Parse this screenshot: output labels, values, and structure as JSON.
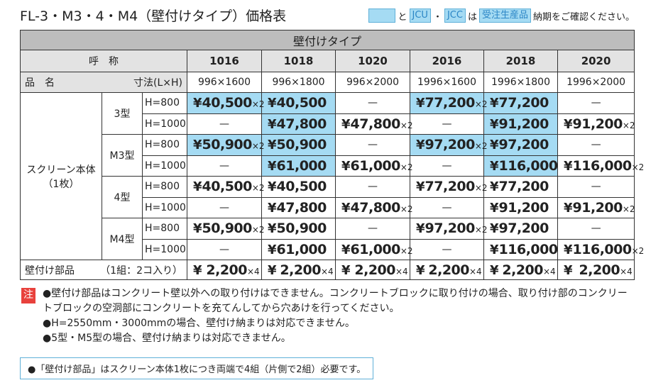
{
  "title": "FL-3・M3・4・M4（壁付けタイプ）価格表",
  "legend": {
    "and": "と",
    "jcu": "JCU",
    "dot": "・",
    "jcc": "JCC",
    "topic": "は",
    "order": "受注生産品",
    "check": "納期をご確認ください。"
  },
  "table": {
    "group": "壁付けタイプ",
    "name_header": "呼　称",
    "item_header": "品　名",
    "size_header": "寸法(L×H)",
    "currency": "¥",
    "codes": [
      "1016",
      "1018",
      "1020",
      "2016",
      "2018",
      "2020"
    ],
    "sizes": [
      "996×1600",
      "996×1800",
      "996×2000",
      "1996×1600",
      "1996×1800",
      "1996×2000"
    ],
    "product": [
      "スクリーン本体",
      "（1枚）"
    ],
    "models": [
      {
        "name": "3型",
        "rows": [
          {
            "height": "H=800",
            "cells": [
              {
                "price": "40,500",
                "mult": "×2",
                "highlight": true
              },
              {
                "price": "40,500",
                "highlight": true
              },
              {
                "price": "—"
              },
              {
                "price": "77,200",
                "mult": "×2",
                "highlight": true
              },
              {
                "price": "77,200",
                "highlight": true
              },
              {
                "price": "—"
              }
            ]
          },
          {
            "height": "H=1000",
            "cells": [
              {
                "price": "—"
              },
              {
                "price": "47,800",
                "highlight": true
              },
              {
                "price": "47,800",
                "mult": "×2"
              },
              {
                "price": "—"
              },
              {
                "price": "91,200",
                "highlight": true
              },
              {
                "price": "91,200",
                "mult": "×2"
              }
            ]
          }
        ]
      },
      {
        "name": "M3型",
        "rows": [
          {
            "height": "H=800",
            "cells": [
              {
                "price": "50,900",
                "mult": "×2",
                "highlight": true
              },
              {
                "price": "50,900",
                "highlight": true
              },
              {
                "price": "—"
              },
              {
                "price": "97,200",
                "mult": "×2",
                "highlight": true
              },
              {
                "price": "97,200",
                "highlight": true
              },
              {
                "price": "—"
              }
            ]
          },
          {
            "height": "H=1000",
            "cells": [
              {
                "price": "—"
              },
              {
                "price": "61,000",
                "highlight": true
              },
              {
                "price": "61,000",
                "mult": "×2"
              },
              {
                "price": "—"
              },
              {
                "price": "116,000",
                "highlight": true
              },
              {
                "price": "116,000",
                "mult": "×2"
              }
            ]
          }
        ]
      },
      {
        "name": "4型",
        "rows": [
          {
            "height": "H=800",
            "cells": [
              {
                "price": "40,500",
                "mult": "×2"
              },
              {
                "price": "40,500"
              },
              {
                "price": "—"
              },
              {
                "price": "77,200",
                "mult": "×2"
              },
              {
                "price": "77,200"
              },
              {
                "price": "—"
              }
            ]
          },
          {
            "height": "H=1000",
            "cells": [
              {
                "price": "—"
              },
              {
                "price": "47,800"
              },
              {
                "price": "47,800",
                "mult": "×2"
              },
              {
                "price": "—"
              },
              {
                "price": "91,200"
              },
              {
                "price": "91,200",
                "mult": "×2"
              }
            ]
          }
        ]
      },
      {
        "name": "M4型",
        "rows": [
          {
            "height": "H=800",
            "cells": [
              {
                "price": "50,900",
                "mult": "×2"
              },
              {
                "price": "50,900"
              },
              {
                "price": "—"
              },
              {
                "price": "97,200",
                "mult": "×2"
              },
              {
                "price": "97,200"
              },
              {
                "price": "—"
              }
            ]
          },
          {
            "height": "H=1000",
            "cells": [
              {
                "price": "—"
              },
              {
                "price": "61,000"
              },
              {
                "price": "61,000",
                "mult": "×2"
              },
              {
                "price": "—"
              },
              {
                "price": "116,000"
              },
              {
                "price": "116,000",
                "mult": "×2"
              }
            ]
          }
        ]
      }
    ],
    "parts": {
      "name": "壁付け部品",
      "unit": "（1組：2コ入り）",
      "cells": [
        {
          "price": "2,200",
          "mult": "×4"
        },
        {
          "price": "2,200",
          "mult": "×4"
        },
        {
          "price": "2,200",
          "mult": "×4"
        },
        {
          "price": "2,200",
          "mult": "×4"
        },
        {
          "price": "2,200",
          "mult": "×4"
        },
        {
          "price": "2,200",
          "mult": "×4"
        }
      ]
    }
  },
  "notes": {
    "mark": "注",
    "items": [
      "●壁付け部品はコンクリート壁以外への取り付けはできません。コンクリートブロックに取り付けの場合、取り付け部のコンクリートブロックの空洞部にコンクリートを充てんしてから穴あけを行ってください。",
      "●H=2550mm・3000mmの場合、壁付け納まりは対応できません。",
      "●5型・M5型の場合、壁付け納まりは対応できません。"
    ]
  },
  "footnote": "●「壁付け部品」はスクリーン本体1枚につき両端で4組（片側で2組）必要です。"
}
